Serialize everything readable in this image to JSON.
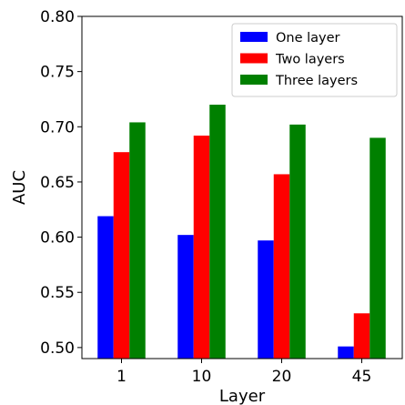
{
  "chart_data": {
    "type": "bar",
    "title": "",
    "xlabel": "Layer",
    "ylabel": "AUC",
    "categories": [
      "1",
      "10",
      "20",
      "45"
    ],
    "ylim": [
      0.49,
      0.8
    ],
    "yticks": [
      0.5,
      0.55,
      0.6,
      0.65,
      0.7,
      0.75,
      0.8
    ],
    "ytick_labels": [
      "0.50",
      "0.55",
      "0.60",
      "0.65",
      "0.70",
      "0.75",
      "0.80"
    ],
    "grid": false,
    "legend_position": "top-right",
    "series": [
      {
        "name": "One layer",
        "color": "#0000ff",
        "values": [
          0.619,
          0.602,
          0.597,
          0.501
        ]
      },
      {
        "name": "Two layers",
        "color": "#ff0000",
        "values": [
          0.677,
          0.692,
          0.657,
          0.531
        ]
      },
      {
        "name": "Three layers",
        "color": "#008000",
        "values": [
          0.704,
          0.72,
          0.702,
          0.69
        ]
      }
    ]
  }
}
